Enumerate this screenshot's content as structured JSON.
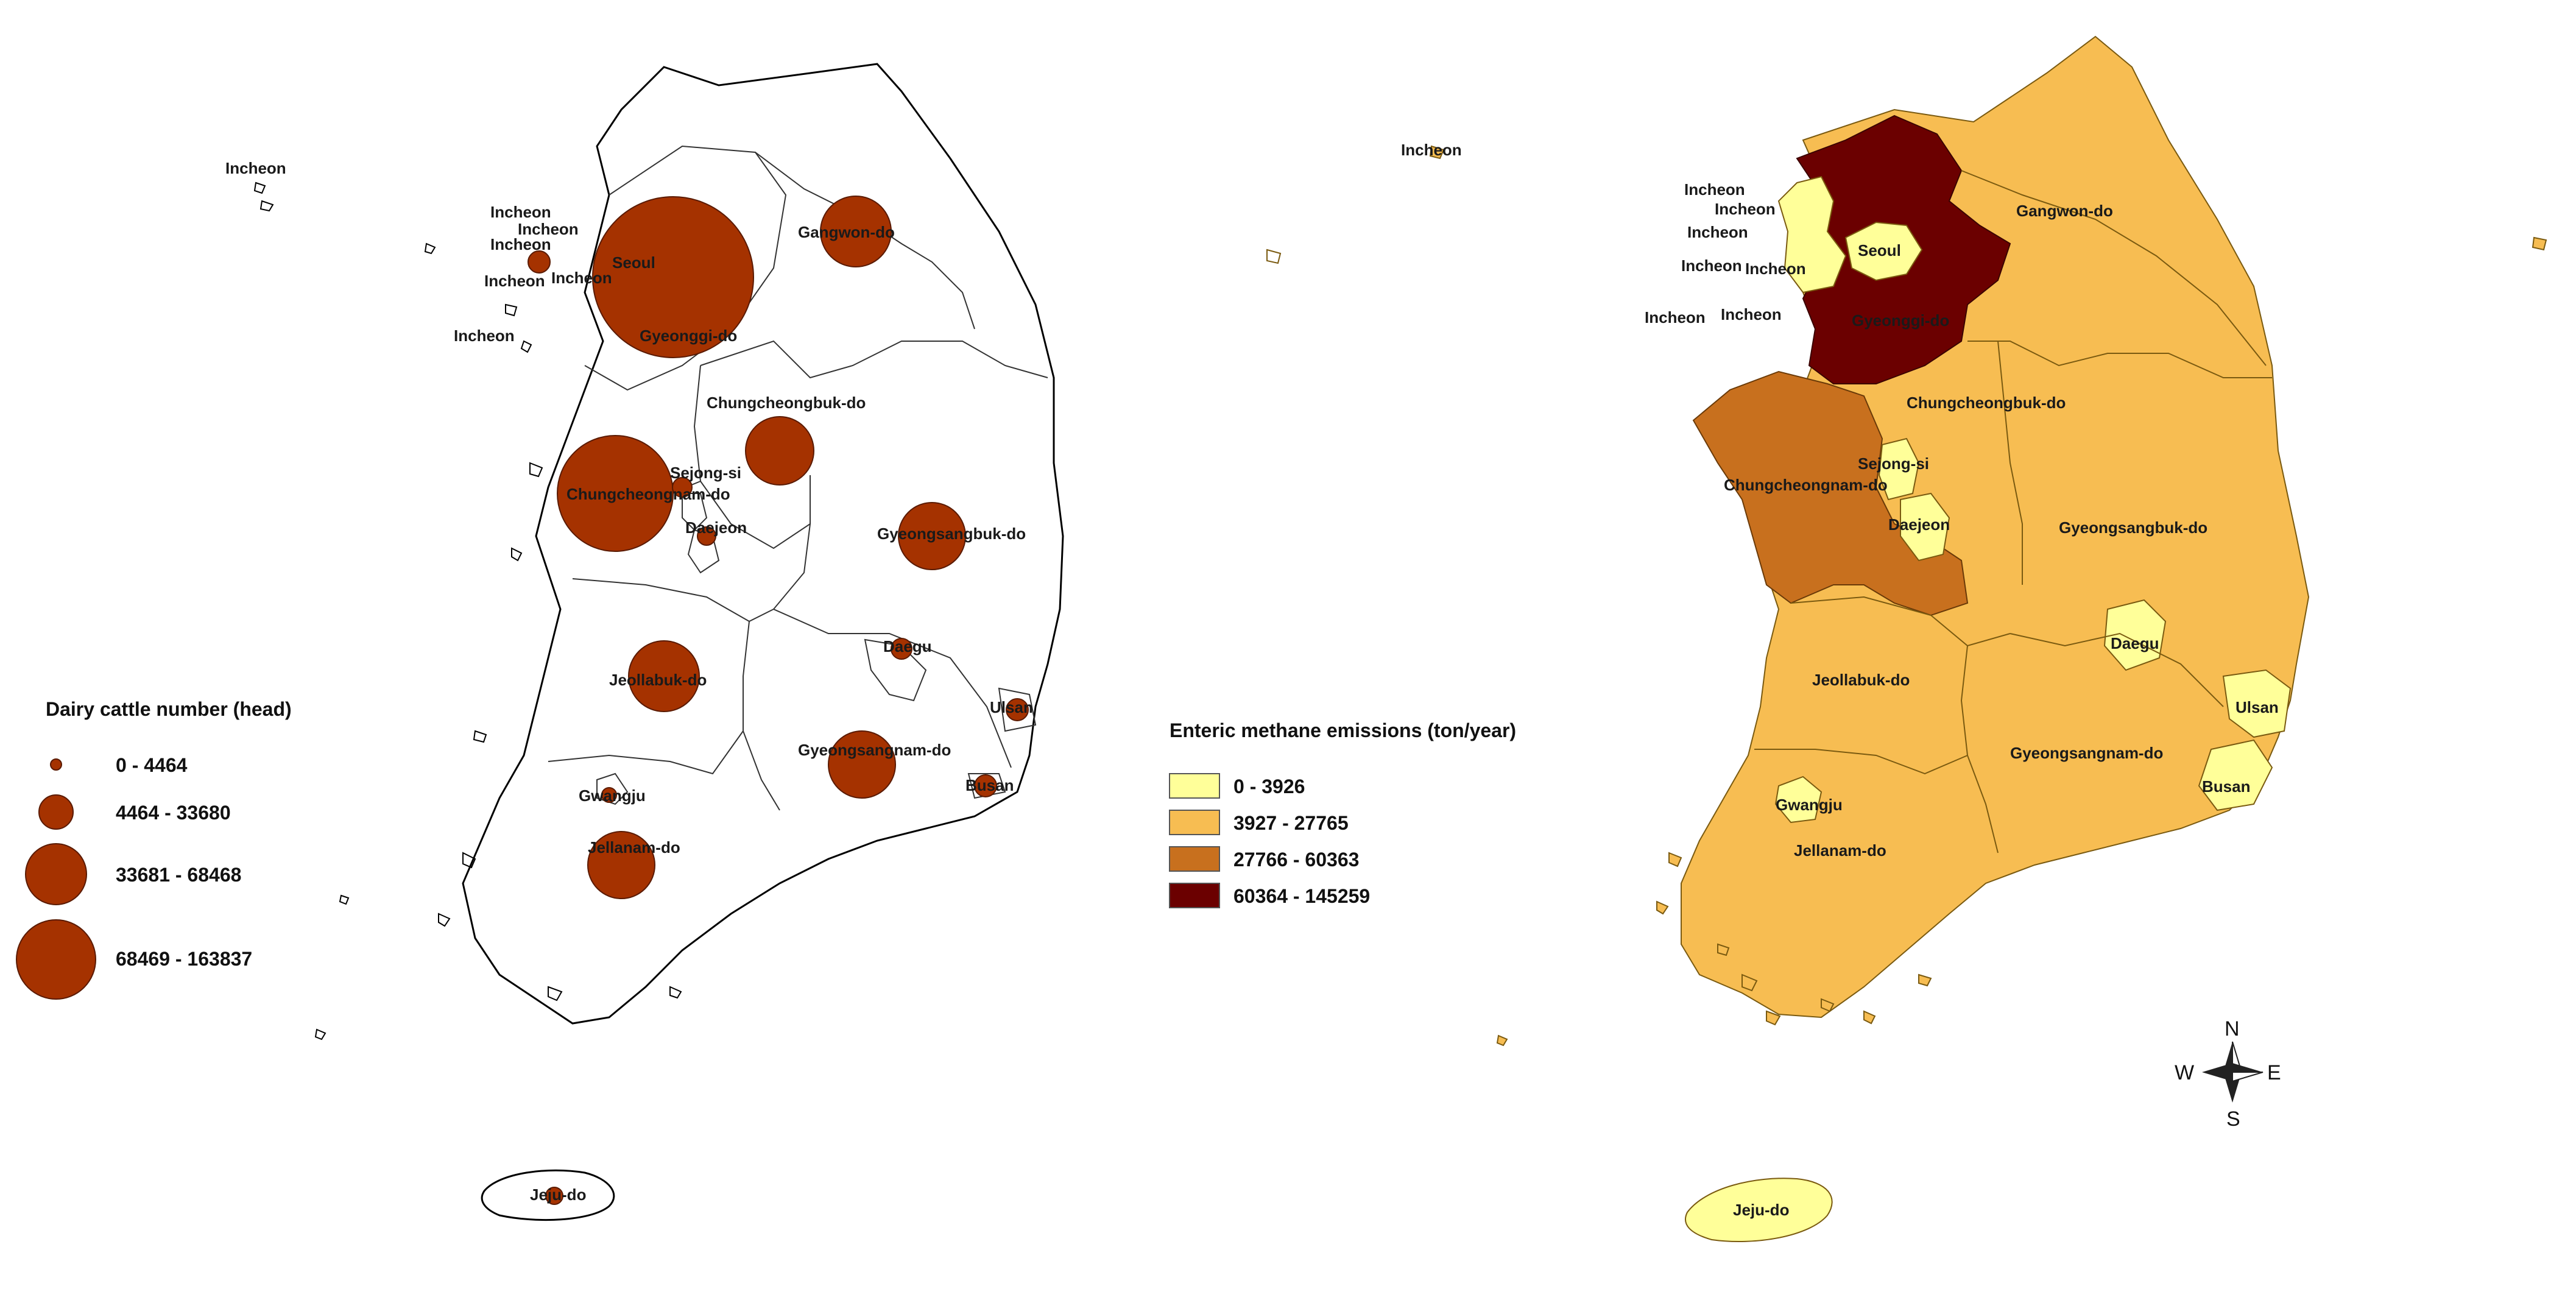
{
  "left_map": {
    "legend": {
      "title": "Dairy cattle number (head)",
      "classes": [
        {
          "label": "0 - 4464"
        },
        {
          "label": "4464 - 33680"
        },
        {
          "label": "33681 - 68468"
        },
        {
          "label": "68469 - 163837"
        }
      ],
      "symbol_color": "#a53200"
    },
    "labels": {
      "incheon_1": "Incheon",
      "incheon_2": "Incheon",
      "incheon_3": "Incheon",
      "incheon_4": "Incheon",
      "incheon_5": "Incheon",
      "incheon_6": "Incheon",
      "incheon_7": "Incheon",
      "seoul": "Seoul",
      "gyeonggi": "Gyeonggi-do",
      "gangwon": "Gangwon-do",
      "chungbuk": "Chungcheongbuk-do",
      "sejong": "Sejong-si",
      "chungnam": "Chungcheongnam-do",
      "daejeon": "Daejeon",
      "gyeongbuk": "Gyeongsangbuk-do",
      "daegu": "Daegu",
      "jeonbuk": "Jeollabuk-do",
      "ulsan": "Ulsan",
      "gyeongnam": "Gyeongsangnam-do",
      "gwangju": "Gwangju",
      "busan": "Busan",
      "jeonnam": "Jellanam-do",
      "jeju": "Jeju-do"
    }
  },
  "right_map": {
    "legend": {
      "title": "Enteric methane emissions (ton/year)",
      "classes": [
        {
          "label": "0 - 3926",
          "color": "#ffff99"
        },
        {
          "label": "3927 - 27765",
          "color": "#f7bd52"
        },
        {
          "label": "27766 - 60363",
          "color": "#c8701e"
        },
        {
          "label": "60364 - 145259",
          "color": "#6b0000"
        }
      ]
    },
    "labels": {
      "incheon_1": "Incheon",
      "incheon_2": "Incheon",
      "incheon_3": "Incheon",
      "incheon_4": "Incheon",
      "incheon_5": "Incheon",
      "incheon_6": "Incheon",
      "incheon_7": "Incheon",
      "incheon_8": "Incheon",
      "seoul": "Seoul",
      "gyeonggi": "Gyeonggi-do",
      "gangwon": "Gangwon-do",
      "chungbuk": "Chungcheongbuk-do",
      "sejong": "Sejong-si",
      "chungnam": "Chungcheongnam-do",
      "daejeon": "Daejeon",
      "gyeongbuk": "Gyeongsangbuk-do",
      "daegu": "Daegu",
      "jeonbuk": "Jeollabuk-do",
      "ulsan": "Ulsan",
      "gyeongnam": "Gyeongsangnam-do",
      "gwangju": "Gwangju",
      "busan": "Busan",
      "jeonnam": "Jellanam-do",
      "jeju": "Jeju-do"
    },
    "compass": {
      "n": "N",
      "s": "S",
      "e": "E",
      "w": "W"
    }
  }
}
